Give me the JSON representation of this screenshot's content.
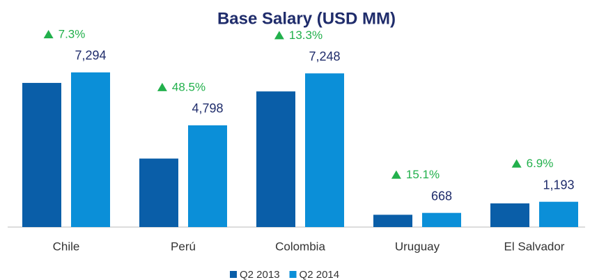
{
  "chart_data": {
    "type": "bar",
    "title": "Base Salary (USD MM)",
    "categories": [
      "Chile",
      "Perú",
      "Colombia",
      "Uruguay",
      "El Salvador"
    ],
    "series": [
      {
        "name": "Q2 2013",
        "color": "#0a5ea8",
        "values": [
          6798,
          3231,
          6397,
          580,
          1116
        ]
      },
      {
        "name": "Q2 2014",
        "color": "#0b8fd8",
        "values": [
          7294,
          4798,
          7248,
          668,
          1193
        ],
        "value_labels": [
          "7,294",
          "4,798",
          "7,248",
          "668",
          "1,193"
        ]
      }
    ],
    "growth_labels": [
      "7.3%",
      "48.5%",
      "13.3%",
      "15.1%",
      "6.9%"
    ],
    "growth_color": "#22b04c",
    "ylim": [
      0,
      9000
    ]
  }
}
